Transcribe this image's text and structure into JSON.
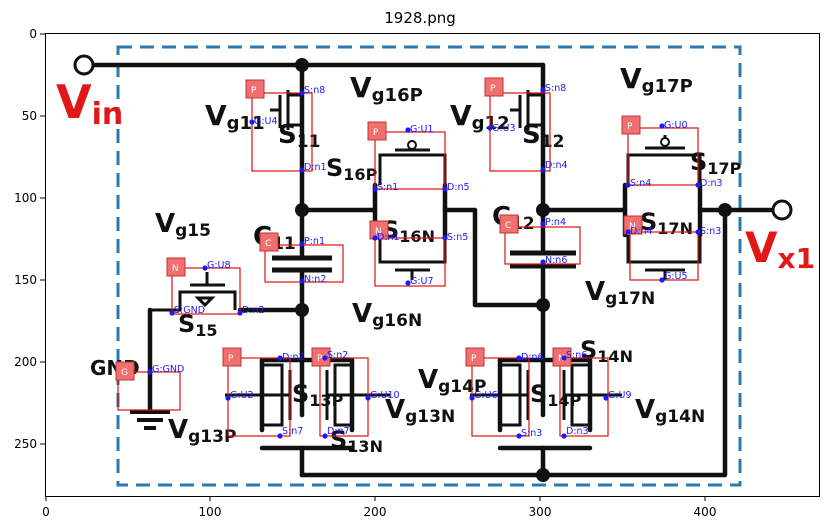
{
  "figure": {
    "title": "1928.png",
    "x_ticks": [
      "0",
      "100",
      "200",
      "300",
      "400"
    ],
    "y_ticks": [
      "0",
      "50",
      "100",
      "150",
      "200",
      "250"
    ]
  },
  "schematic_labels": {
    "vin": {
      "main": "V",
      "sub": "in"
    },
    "vx1": {
      "main": "V",
      "sub": "x1"
    },
    "gnd": "GND",
    "vg11": {
      "main": "V",
      "sub": "g11"
    },
    "vg12": {
      "main": "V",
      "sub": "g12"
    },
    "vg16p": {
      "main": "V",
      "sub": "g16P"
    },
    "vg17p": {
      "main": "V",
      "sub": "g17P"
    },
    "vg15": {
      "main": "V",
      "sub": "g15"
    },
    "vg16n": {
      "main": "V",
      "sub": "g16N"
    },
    "vg17n": {
      "main": "V",
      "sub": "g17N"
    },
    "vg13p": {
      "main": "V",
      "sub": "g13P"
    },
    "vg13n": {
      "main": "V",
      "sub": "g13N"
    },
    "vg14p": {
      "main": "V",
      "sub": "g14P"
    },
    "vg14n": {
      "main": "V",
      "sub": "g14N"
    },
    "s11": {
      "main": "S",
      "sub": "11"
    },
    "s12": {
      "main": "S",
      "sub": "12"
    },
    "s16p": {
      "main": "S",
      "sub": "16P"
    },
    "s16n": {
      "main": "S",
      "sub": "16N"
    },
    "s17p": {
      "main": "S",
      "sub": "17P"
    },
    "s17n": {
      "main": "S",
      "sub": "17N"
    },
    "s15": {
      "main": "S",
      "sub": "15"
    },
    "s13p": {
      "main": "S",
      "sub": "13P"
    },
    "s13n": {
      "main": "S",
      "sub": "13N"
    },
    "s14p": {
      "main": "S",
      "sub": "14P"
    },
    "s14n": {
      "main": "S",
      "sub": "14N"
    },
    "c11": {
      "main": "C",
      "sub": "11"
    },
    "c12": {
      "main": "C",
      "sub": "12"
    }
  },
  "component_tags": {
    "s11": "P",
    "s16p": "P",
    "s12": "P",
    "s17p": "P",
    "c11": "C",
    "s16n": "N",
    "c12": "C",
    "s17n": "N",
    "s15": "N",
    "gnd": "G",
    "s13p": "P",
    "s13n": "P",
    "s14p": "P",
    "s14n": "N"
  },
  "pin_labels": {
    "s11_s": "S:n8",
    "s11_g": "G:U4",
    "s11_d": "D:n1",
    "s12_s": "S:n8",
    "s12_g": "G:U3",
    "s12_d": "D:n4",
    "s16p_g": "G:U1",
    "s16p_s": "S:n1",
    "s16p_d": "D:n5",
    "s17p_g": "G:U0",
    "s17p_s": "S:n4",
    "s17p_d": "D:n3",
    "c11_p": "P:n1",
    "c11_n": "N:n2",
    "c12_p": "P:n4",
    "c12_n": "N:n6",
    "s16n_d": "D:n1",
    "s16n_s": "S:n5",
    "s16n_g": "G:U7",
    "s17n_d": "D:n4",
    "s17n_s": "S:n3",
    "s17n_g": "G:U5",
    "s15_g": "G:U8",
    "s15_s": "S:GND",
    "s15_d": "D:n2",
    "gnd_g": "G:GND",
    "s13p_d": "D:n2",
    "s13p_g": "G:U2",
    "s13p_s": "S:n7",
    "s13n_s": "S:n2",
    "s13n_g": "G:U10",
    "s13n_d": "D:n7",
    "s14p_d": "D:n6",
    "s14p_g": "G:U6",
    "s14p_s": "S:n3",
    "s14n_s": "S:n6",
    "s14n_g": "G:U9",
    "s14n_d": "D:n3"
  },
  "colors": {
    "annotation_text": "#1a1aff",
    "box_stroke": "#e01010",
    "tag_fill": "#f07070",
    "dashed_border": "#2a7ab0",
    "io_label": "#e01818"
  }
}
